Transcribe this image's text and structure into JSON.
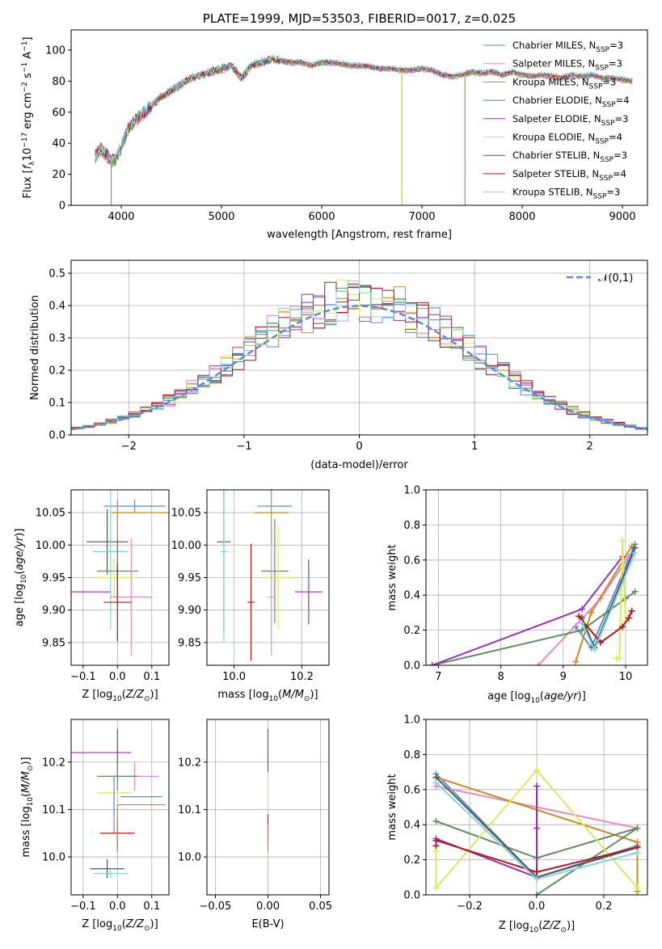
{
  "chart_data": [
    {
      "id": "spectrum",
      "type": "line",
      "title": "PLATE=1999, MJD=53503, FIBERID=0017, z=0.025",
      "xlabel": "wavelength [Angstrom, rest frame]",
      "ylabel": "Flux [f_λ 10^-17 erg cm^-2 s^-1 A^-1]",
      "xlim": [
        3500,
        9250
      ],
      "ylim": [
        0,
        113
      ],
      "xticks": [
        4000,
        5000,
        6000,
        7000,
        8000,
        9000
      ],
      "yticks": [
        0,
        20,
        40,
        60,
        80,
        100
      ],
      "legend_position": "upper right",
      "series": [
        {
          "name": "Chabrier MILES, N_SSP=3",
          "color": "#5b8bd9"
        },
        {
          "name": "Salpeter MILES, N_SSP=3",
          "color": "#e88ac2"
        },
        {
          "name": "Kroupa MILES, N_SSP=3",
          "color": "#c98a1f"
        },
        {
          "name": "Chabrier ELODIE, N_SSP=4",
          "color": "#5e8d64"
        },
        {
          "name": "Salpeter ELODIE, N_SSP=3",
          "color": "#9a2fb5"
        },
        {
          "name": "Kroupa ELODIE, N_SSP=4",
          "color": "#d8e860"
        },
        {
          "name": "Chabrier STELIB, N_SSP=3",
          "color": "#555555"
        },
        {
          "name": "Salpeter STELIB, N_SSP=4",
          "color": "#b3131c"
        },
        {
          "name": "Kroupa STELIB, N_SSP=3",
          "color": "#7fd6df"
        }
      ],
      "continuum": {
        "x": [
          3740,
          3800,
          3850,
          3900,
          3950,
          4000,
          4050,
          4100,
          4150,
          4200,
          4300,
          4400,
          4500,
          4600,
          4700,
          4800,
          4900,
          5000,
          5100,
          5200,
          5300,
          5400,
          5500,
          5600,
          5700,
          5800,
          5900,
          6000,
          6100,
          6200,
          6300,
          6400,
          6500,
          6600,
          6700,
          6800,
          6900,
          7000,
          7100,
          7200,
          7300,
          7400,
          7500,
          7600,
          7700,
          7800,
          7900,
          8000,
          8100,
          8200,
          8300,
          8400,
          8500,
          8600,
          8700,
          8800,
          8900,
          9000,
          9100
        ],
        "y": [
          32,
          36,
          33,
          28,
          30,
          38,
          46,
          52,
          55,
          58,
          64,
          70,
          74,
          78,
          82,
          84,
          86,
          88,
          90,
          82,
          90,
          92,
          94,
          93,
          92,
          92,
          90,
          92,
          92,
          91,
          90,
          90,
          89,
          88,
          88,
          87,
          87,
          88,
          87,
          84,
          83,
          84,
          86,
          85,
          86,
          84,
          86,
          84,
          83,
          84,
          83,
          82,
          84,
          83,
          84,
          82,
          82,
          81,
          80
        ]
      },
      "dropouts": [
        {
          "x": 3900,
          "color": "#c98a1f"
        },
        {
          "x": 6800,
          "color": "#c8c820"
        },
        {
          "x": 7430,
          "color": "#c98a1f"
        }
      ]
    },
    {
      "id": "residuals",
      "type": "histogram",
      "xlabel": "(data-model)/error",
      "ylabel": "Normed distribution",
      "xlim": [
        -2.5,
        2.5
      ],
      "ylim": [
        0,
        0.54
      ],
      "xticks": [
        -2,
        -1,
        0,
        1,
        2
      ],
      "yticks": [
        0.0,
        0.1,
        0.2,
        0.3,
        0.4,
        0.5
      ],
      "reference": {
        "name": "𝒩(0,1)",
        "color": "#5b8bd9"
      },
      "bins": {
        "start": -2.5,
        "width": 0.1,
        "count": 50
      }
    },
    {
      "id": "age-vs-Z",
      "type": "scatter",
      "xlabel": "Z [log10(Z/Z⊙)]",
      "ylabel": "age [log10(age/yr)]",
      "xlim": [
        -0.135,
        0.15
      ],
      "ylim": [
        9.815,
        10.085
      ],
      "xticks": [
        -0.1,
        0.0,
        0.1
      ],
      "yticks": [
        9.85,
        9.9,
        9.95,
        10.0,
        10.05
      ],
      "points": [
        {
          "x": 0.05,
          "y": 10.06,
          "xerr": 0.09,
          "yerr": 0.01,
          "color": "#5b8bd9"
        },
        {
          "x": 0.07,
          "y": 10.05,
          "xerr": 0.09,
          "yerr": 0.0,
          "color": "#c98a1f"
        },
        {
          "x": 0.0,
          "y": 9.99,
          "xerr": 0.03,
          "yerr": 0.08,
          "color": "#c98a1f"
        },
        {
          "x": -0.03,
          "y": 10.005,
          "xerr": 0.06,
          "yerr": 0.05,
          "color": "#555555"
        },
        {
          "x": -0.02,
          "y": 9.99,
          "xerr": 0.05,
          "yerr": 0.12,
          "color": "#7fd6df"
        },
        {
          "x": 0.0,
          "y": 9.96,
          "xerr": 0.06,
          "yerr": 0.05,
          "color": "#5e8d64"
        },
        {
          "x": -0.01,
          "y": 9.95,
          "xerr": 0.06,
          "yerr": 0.03,
          "color": "#d8e860"
        },
        {
          "x": -0.09,
          "y": 9.928,
          "xerr": 0.07,
          "yerr": 0.0,
          "color": "#9a2fb5"
        },
        {
          "x": 0.04,
          "y": 9.92,
          "xerr": 0.06,
          "yerr": 0.09,
          "color": "#e88ac2"
        },
        {
          "x": 0.0,
          "y": 9.912,
          "xerr": 0.04,
          "yerr": 0.06,
          "color": "#b3131c"
        }
      ]
    },
    {
      "id": "age-vs-mass",
      "type": "scatter",
      "xlabel": "mass [log10(M/M⊙)]",
      "ylabel": "",
      "xlim": [
        9.92,
        10.28
      ],
      "ylim": [
        9.815,
        10.085
      ],
      "xticks": [
        10.0,
        10.2
      ],
      "yticks": [
        9.85,
        9.9,
        9.95,
        10.0,
        10.05
      ],
      "points": [
        {
          "x": 10.12,
          "y": 10.06,
          "xerr": 0.05,
          "yerr": 0.0,
          "color": "#5b8bd9"
        },
        {
          "x": 10.11,
          "y": 10.05,
          "xerr": 0.05,
          "yerr": 0.05,
          "color": "#c98a1f"
        },
        {
          "x": 9.97,
          "y": 10.005,
          "xerr": 0.02,
          "yerr": 0.14,
          "color": "#555555"
        },
        {
          "x": 9.97,
          "y": 9.99,
          "xerr": 0.01,
          "yerr": 0.14,
          "color": "#7fd6df"
        },
        {
          "x": 10.05,
          "y": 9.912,
          "xerr": 0.01,
          "yerr": 0.09,
          "color": "#b3131c"
        },
        {
          "x": 10.12,
          "y": 9.96,
          "xerr": 0.04,
          "yerr": 0.08,
          "color": "#5e8d64"
        },
        {
          "x": 10.13,
          "y": 9.95,
          "xerr": 0.05,
          "yerr": 0.08,
          "color": "#d8e860"
        },
        {
          "x": 10.22,
          "y": 9.928,
          "xerr": 0.04,
          "yerr": 0.05,
          "color": "#9a2fb5"
        },
        {
          "x": 10.11,
          "y": 9.92,
          "xerr": 0.01,
          "yerr": 0.09,
          "color": "#e88ac2"
        }
      ]
    },
    {
      "id": "weight-vs-age",
      "type": "line",
      "xlabel": "age [log10(age/yr)]",
      "ylabel": "mass weight",
      "xlim": [
        6.8,
        10.35
      ],
      "ylim": [
        0,
        1
      ],
      "xticks": [
        7,
        8,
        9,
        10
      ],
      "yticks": [
        0.0,
        0.2,
        0.4,
        0.6,
        0.8,
        1.0
      ],
      "series": [
        {
          "name": "Chabrier MILES, N_SSP=3",
          "color": "#5b8bd9",
          "x": [
            9.2,
            9.45,
            10.15
          ],
          "y": [
            0.22,
            0.1,
            0.69
          ]
        },
        {
          "name": "Salpeter MILES, N_SSP=3",
          "color": "#e88ac2",
          "x": [
            8.6,
            9.6,
            10.05
          ],
          "y": [
            0.0,
            0.38,
            0.62
          ]
        },
        {
          "name": "Kroupa MILES, N_SSP=3",
          "color": "#c98a1f",
          "x": [
            9.2,
            9.45,
            10.1
          ],
          "y": [
            0.02,
            0.3,
            0.68
          ]
        },
        {
          "name": "Chabrier ELODIE, N_SSP=4",
          "color": "#5e8d64",
          "x": [
            6.9,
            9.3,
            10.0,
            10.15
          ],
          "y": [
            0.0,
            0.2,
            0.38,
            0.42
          ]
        },
        {
          "name": "Salpeter ELODIE, N_SSP=3",
          "color": "#9a2fb5",
          "x": [
            6.9,
            9.3,
            9.95
          ],
          "y": [
            0.0,
            0.32,
            0.62
          ]
        },
        {
          "name": "Kroupa ELODIE, N_SSP=4",
          "color": "#d8e860",
          "x": [
            9.85,
            9.9,
            9.95,
            10.0
          ],
          "y": [
            0.04,
            0.04,
            0.71,
            0.25
          ]
        },
        {
          "name": "Chabrier STELIB, N_SSP=3",
          "color": "#555555",
          "x": [
            9.3,
            9.5,
            10.15
          ],
          "y": [
            0.27,
            0.1,
            0.67
          ]
        },
        {
          "name": "Salpeter STELIB, N_SSP=4",
          "color": "#b3131c",
          "x": [
            9.25,
            9.6,
            9.95,
            10.05,
            10.1
          ],
          "y": [
            0.28,
            0.13,
            0.22,
            0.27,
            0.31
          ]
        },
        {
          "name": "Kroupa STELIB, N_SSP=3",
          "color": "#7fd6df",
          "x": [
            9.3,
            9.5,
            10.15
          ],
          "y": [
            0.24,
            0.09,
            0.64
          ]
        }
      ]
    },
    {
      "id": "mass-vs-Z",
      "type": "scatter",
      "xlabel": "Z [log10(Z/Z⊙)]",
      "ylabel": "mass [log10(M/M⊙)]",
      "xlim": [
        -0.135,
        0.15
      ],
      "ylim": [
        9.92,
        10.29
      ],
      "xticks": [
        -0.1,
        0.0,
        0.1
      ],
      "yticks": [
        10.0,
        10.1,
        10.2
      ],
      "points": [
        {
          "x": -0.05,
          "y": 10.22,
          "xerr": 0.09,
          "yerr": 0.0,
          "color": "#9a2fb5"
        },
        {
          "x": 0.0,
          "y": 10.22,
          "xerr": 0.0,
          "yerr": 0.05,
          "color": "#9a2fb5"
        },
        {
          "x": 0.05,
          "y": 10.17,
          "xerr": 0.07,
          "yerr": 0.03,
          "color": "#e88ac2"
        },
        {
          "x": 0.0,
          "y": 10.17,
          "xerr": 0.06,
          "yerr": 0.03,
          "color": "#5e8d64"
        },
        {
          "x": -0.01,
          "y": 10.135,
          "xerr": 0.05,
          "yerr": 0.04,
          "color": "#d8e860"
        },
        {
          "x": 0.07,
          "y": 10.127,
          "xerr": 0.06,
          "yerr": 0.0,
          "color": "#5b8bd9"
        },
        {
          "x": 0.07,
          "y": 10.11,
          "xerr": 0.07,
          "yerr": 0.0,
          "color": "#c98a1f"
        },
        {
          "x": -0.01,
          "y": 10.11,
          "xerr": 0.0,
          "yerr": 0.06,
          "color": "#5b8bd9"
        },
        {
          "x": 0.0,
          "y": 10.05,
          "xerr": 0.05,
          "yerr": 0.03,
          "color": "#b3131c"
        },
        {
          "x": -0.03,
          "y": 9.975,
          "xerr": 0.05,
          "yerr": 0.02,
          "color": "#555555"
        },
        {
          "x": -0.02,
          "y": 9.965,
          "xerr": 0.05,
          "yerr": 0.01,
          "color": "#7fd6df"
        },
        {
          "x": 0.0,
          "y": 10.06,
          "xerr": 0.0,
          "yerr": 0.05,
          "color": "#c98a1f"
        }
      ]
    },
    {
      "id": "mass-vs-ebv",
      "type": "scatter",
      "xlabel": "E(B-V)",
      "ylabel": "",
      "xlim": [
        -0.058,
        0.058
      ],
      "ylim": [
        9.92,
        10.29
      ],
      "xticks": [
        -0.05,
        0.0,
        0.05
      ],
      "yticks": [
        10.0,
        10.1,
        10.2
      ],
      "points": [
        {
          "x": 0.0,
          "y": 10.22,
          "yerr": 0.05,
          "color": "#9a2fb5"
        },
        {
          "x": 0.0,
          "y": 10.14,
          "yerr": 0.04,
          "color": "#d8e860"
        },
        {
          "x": 0.0,
          "y": 10.06,
          "yerr": 0.03,
          "color": "#b3131c"
        },
        {
          "x": 0.0,
          "y": 10.04,
          "yerr": 0.03,
          "color": "#c98a1f"
        },
        {
          "x": 0.0,
          "y": 9.96,
          "yerr": 0.03,
          "color": "#7fd6df"
        }
      ]
    },
    {
      "id": "weight-vs-Z",
      "type": "line",
      "xlabel": "Z [log10(Z/Z⊙)]",
      "ylabel": "mass weight",
      "xlim": [
        -0.33,
        0.33
      ],
      "ylim": [
        0,
        1
      ],
      "xticks": [
        -0.2,
        0.0,
        0.2
      ],
      "yticks": [
        0.0,
        0.2,
        0.4,
        0.6,
        0.8,
        1.0
      ],
      "series": [
        {
          "name": "Chabrier MILES, N_SSP=3",
          "color": "#5b8bd9",
          "x": [
            -0.3,
            0.0,
            0.3
          ],
          "y": [
            0.69,
            0.1,
            0.28
          ]
        },
        {
          "name": "Salpeter MILES, N_SSP=3",
          "color": "#e88ac2",
          "x": [
            -0.3,
            0.3
          ],
          "y": [
            0.62,
            0.38
          ]
        },
        {
          "name": "Kroupa MILES, N_SSP=3",
          "color": "#c98a1f",
          "x": [
            -0.3,
            0.3,
            0.3
          ],
          "y": [
            0.67,
            0.3,
            0.02
          ]
        },
        {
          "name": "Chabrier ELODIE, N_SSP=4",
          "color": "#5e8d64",
          "x": [
            -0.3,
            0.0,
            0.3,
            0.0
          ],
          "y": [
            0.42,
            0.21,
            0.38,
            0.0
          ]
        },
        {
          "name": "Salpeter ELODIE, N_SSP=3",
          "color": "#9a2fb5",
          "x": [
            -0.3,
            0.0,
            0.0,
            0.0
          ],
          "y": [
            0.32,
            0.1,
            0.38,
            0.62
          ]
        },
        {
          "name": "Kroupa ELODIE, N_SSP=4",
          "color": "#d8e860",
          "x": [
            -0.3,
            -0.3,
            0.0,
            0.3
          ],
          "y": [
            0.25,
            0.04,
            0.71,
            0.04
          ]
        },
        {
          "name": "Chabrier STELIB, N_SSP=3",
          "color": "#555555",
          "x": [
            -0.3,
            0.0,
            0.3
          ],
          "y": [
            0.67,
            0.1,
            0.27
          ]
        },
        {
          "name": "Salpeter STELIB, N_SSP=4",
          "color": "#b3131c",
          "x": [
            -0.3,
            -0.3,
            0.0,
            0.3
          ],
          "y": [
            0.28,
            0.31,
            0.13,
            0.27
          ]
        },
        {
          "name": "Kroupa STELIB, N_SSP=3",
          "color": "#7fd6df",
          "x": [
            -0.3,
            0.0,
            0.3
          ],
          "y": [
            0.64,
            0.09,
            0.24
          ]
        }
      ]
    }
  ]
}
